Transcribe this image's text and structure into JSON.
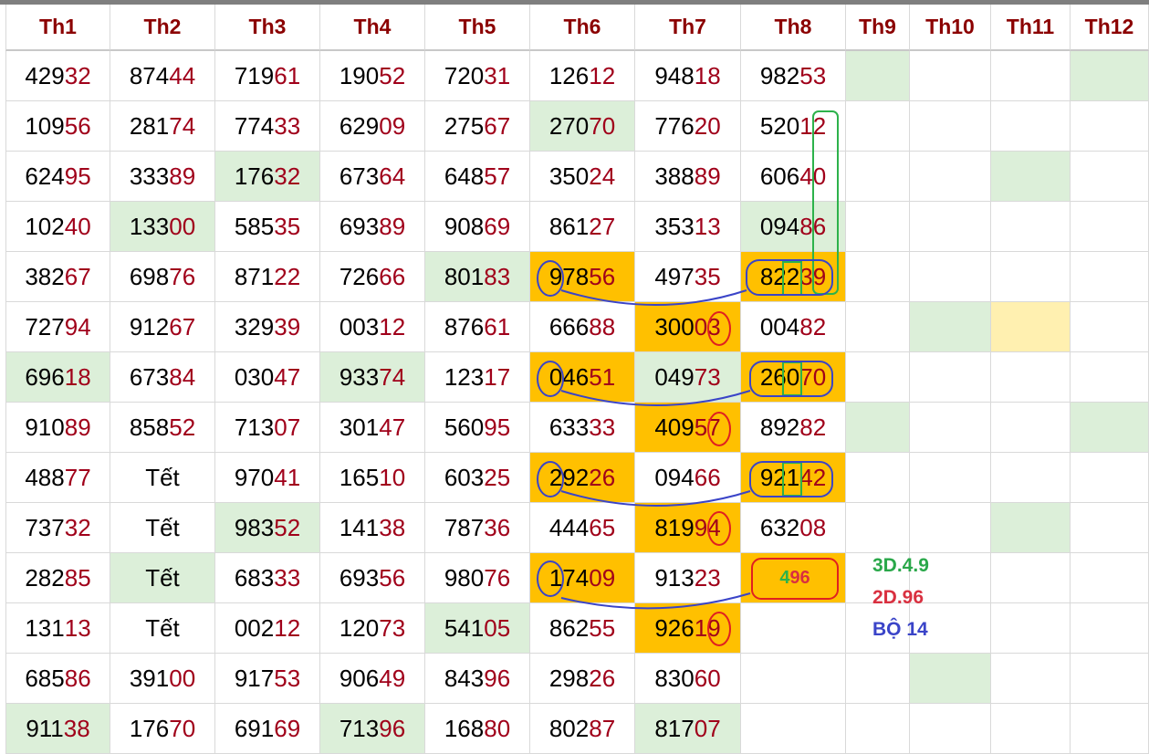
{
  "headers": [
    "Th1",
    "Th2",
    "Th3",
    "Th4",
    "Th5",
    "Th6",
    "Th7",
    "Th8",
    "Th9",
    "Th10",
    "Th11",
    "Th12"
  ],
  "rows": [
    [
      "42932",
      "87444",
      "71961",
      "19052",
      "72031",
      "12612",
      "94818",
      "98253",
      "",
      "",
      "",
      ""
    ],
    [
      "10956",
      "28174",
      "77433",
      "62909",
      "27567",
      "27070",
      "77620",
      "52012",
      "",
      "",
      "",
      ""
    ],
    [
      "62495",
      "33389",
      "17632",
      "67364",
      "64857",
      "35024",
      "38889",
      "60640",
      "",
      "",
      "",
      ""
    ],
    [
      "10240",
      "13300",
      "58535",
      "69389",
      "90869",
      "86127",
      "35313",
      "09486",
      "",
      "",
      "",
      ""
    ],
    [
      "38267",
      "69876",
      "87122",
      "72666",
      "80183",
      "97856",
      "49735",
      "82239",
      "",
      "",
      "",
      ""
    ],
    [
      "72794",
      "91267",
      "32939",
      "00312",
      "87661",
      "66688",
      "30003",
      "00482",
      "",
      "",
      "",
      ""
    ],
    [
      "69618",
      "67384",
      "03047",
      "93374",
      "12317",
      "04651",
      "04973",
      "26070",
      "",
      "",
      "",
      ""
    ],
    [
      "91089",
      "85852",
      "71307",
      "30147",
      "56095",
      "63333",
      "40957",
      "89282",
      "",
      "",
      "",
      ""
    ],
    [
      "48877",
      "Tết",
      "97041",
      "16510",
      "60325",
      "29226",
      "09466",
      "92142",
      "",
      "",
      "",
      ""
    ],
    [
      "73732",
      "Tết",
      "98352",
      "14138",
      "78736",
      "44465",
      "81994",
      "63208",
      "",
      "",
      "",
      ""
    ],
    [
      "28285",
      "Tết",
      "68333",
      "69356",
      "98076",
      "17409",
      "91323",
      "",
      "",
      "",
      "",
      ""
    ],
    [
      "13113",
      "Tết",
      "00212",
      "12073",
      "54105",
      "86255",
      "92619",
      "",
      "",
      "",
      "",
      ""
    ],
    [
      "68586",
      "39100",
      "91753",
      "90649",
      "84396",
      "29826",
      "83060",
      "",
      "",
      "",
      "",
      ""
    ],
    [
      "91138",
      "17670",
      "69169",
      "71396",
      "16880",
      "80287",
      "81707",
      "",
      "",
      "",
      "",
      ""
    ]
  ],
  "highlights": {
    "green": [
      [
        0,
        8
      ],
      [
        0,
        11
      ],
      [
        1,
        5
      ],
      [
        2,
        2
      ],
      [
        2,
        10
      ],
      [
        3,
        1
      ],
      [
        3,
        7
      ],
      [
        4,
        4
      ],
      [
        5,
        9
      ],
      [
        6,
        0
      ],
      [
        6,
        3
      ],
      [
        6,
        6
      ],
      [
        7,
        8
      ],
      [
        7,
        11
      ],
      [
        9,
        2
      ],
      [
        9,
        10
      ],
      [
        10,
        1
      ],
      [
        11,
        4
      ],
      [
        12,
        9
      ],
      [
        13,
        0
      ],
      [
        13,
        3
      ],
      [
        13,
        6
      ]
    ],
    "orange": [
      [
        4,
        5
      ],
      [
        4,
        7
      ],
      [
        5,
        6
      ],
      [
        6,
        5
      ],
      [
        6,
        7
      ],
      [
        7,
        6
      ],
      [
        8,
        5
      ],
      [
        8,
        7
      ],
      [
        9,
        6
      ],
      [
        10,
        5
      ],
      [
        10,
        7
      ],
      [
        11,
        6
      ]
    ],
    "yellow": [
      [
        5,
        10
      ]
    ]
  },
  "colors": {
    "green": "#dcefd9",
    "orange": "#ffc000",
    "yellow": "#fff0b0",
    "header_text": "#8b0000",
    "digit_highlight": "#a0001a"
  },
  "prediction": {
    "d1": "4",
    "d2": "96"
  },
  "notes": {
    "line1": "3D.4.9",
    "line2": "2D.96",
    "line3": "BỘ 14"
  }
}
